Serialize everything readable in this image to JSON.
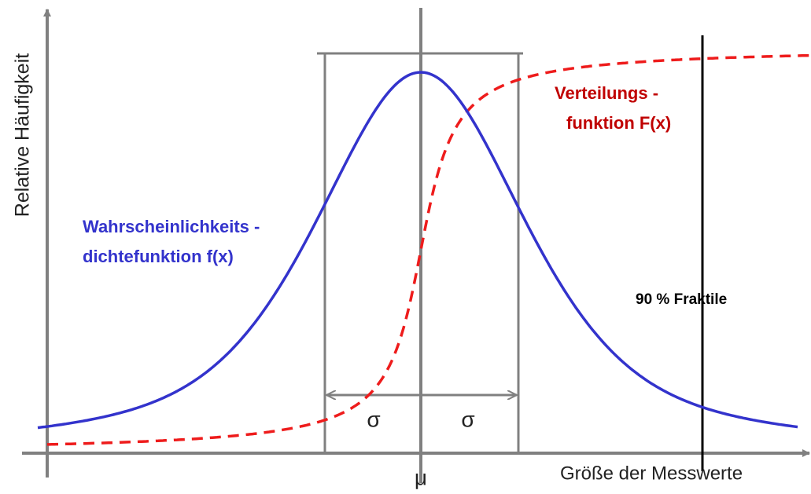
{
  "axes": {
    "y_label": "Relative Häufigkeit",
    "x_label": "Größe der Messwerte"
  },
  "markers": {
    "mean": "μ",
    "sigma_left": "σ",
    "sigma_right": "σ",
    "quantile": "90 % Fraktile"
  },
  "curves": {
    "density": [
      "Wahrscheinlichkeits -",
      "dichtefunktion f(x)"
    ],
    "distribution": [
      "Verteilungs -",
      "funktion F(x)"
    ]
  }
}
